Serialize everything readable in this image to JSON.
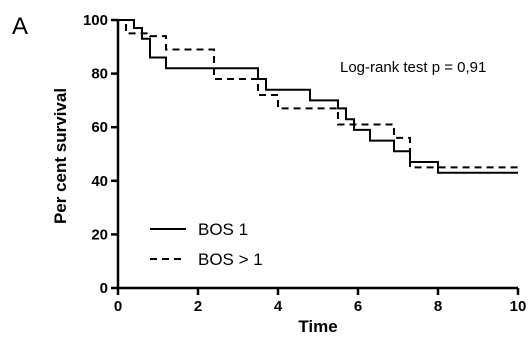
{
  "chart_data": {
    "type": "line",
    "panel_label": "A",
    "title": "",
    "xlabel": "Time",
    "ylabel": "Per cent survival",
    "xlim": [
      0,
      10
    ],
    "ylim": [
      0,
      100
    ],
    "x_ticks": [
      0,
      2,
      4,
      6,
      8,
      10
    ],
    "y_ticks": [
      0,
      20,
      40,
      60,
      80,
      100
    ],
    "annotation": "Log-rank test p = 0,91",
    "legend_position": "bottom-left",
    "grid": false,
    "series": [
      {
        "name": "BOS 1",
        "style": "solid",
        "color": "#000000",
        "steps": [
          [
            0,
            100
          ],
          [
            0.4,
            97
          ],
          [
            0.6,
            93
          ],
          [
            0.8,
            86
          ],
          [
            1.2,
            82
          ],
          [
            3.5,
            78
          ],
          [
            3.7,
            74
          ],
          [
            4.8,
            70
          ],
          [
            5.5,
            67
          ],
          [
            5.7,
            63
          ],
          [
            5.9,
            59
          ],
          [
            6.3,
            55
          ],
          [
            6.9,
            51
          ],
          [
            7.3,
            47
          ],
          [
            8.0,
            43
          ],
          [
            10,
            43
          ]
        ]
      },
      {
        "name": "BOS > 1",
        "style": "dashed",
        "color": "#000000",
        "steps": [
          [
            0,
            100
          ],
          [
            0.2,
            95
          ],
          [
            0.8,
            94
          ],
          [
            1.2,
            89
          ],
          [
            2.4,
            78
          ],
          [
            3.5,
            72
          ],
          [
            4.0,
            67
          ],
          [
            5.5,
            61
          ],
          [
            6.5,
            61
          ],
          [
            6.9,
            56
          ],
          [
            7.3,
            45
          ],
          [
            8.2,
            45
          ],
          [
            10,
            45
          ]
        ]
      }
    ]
  }
}
